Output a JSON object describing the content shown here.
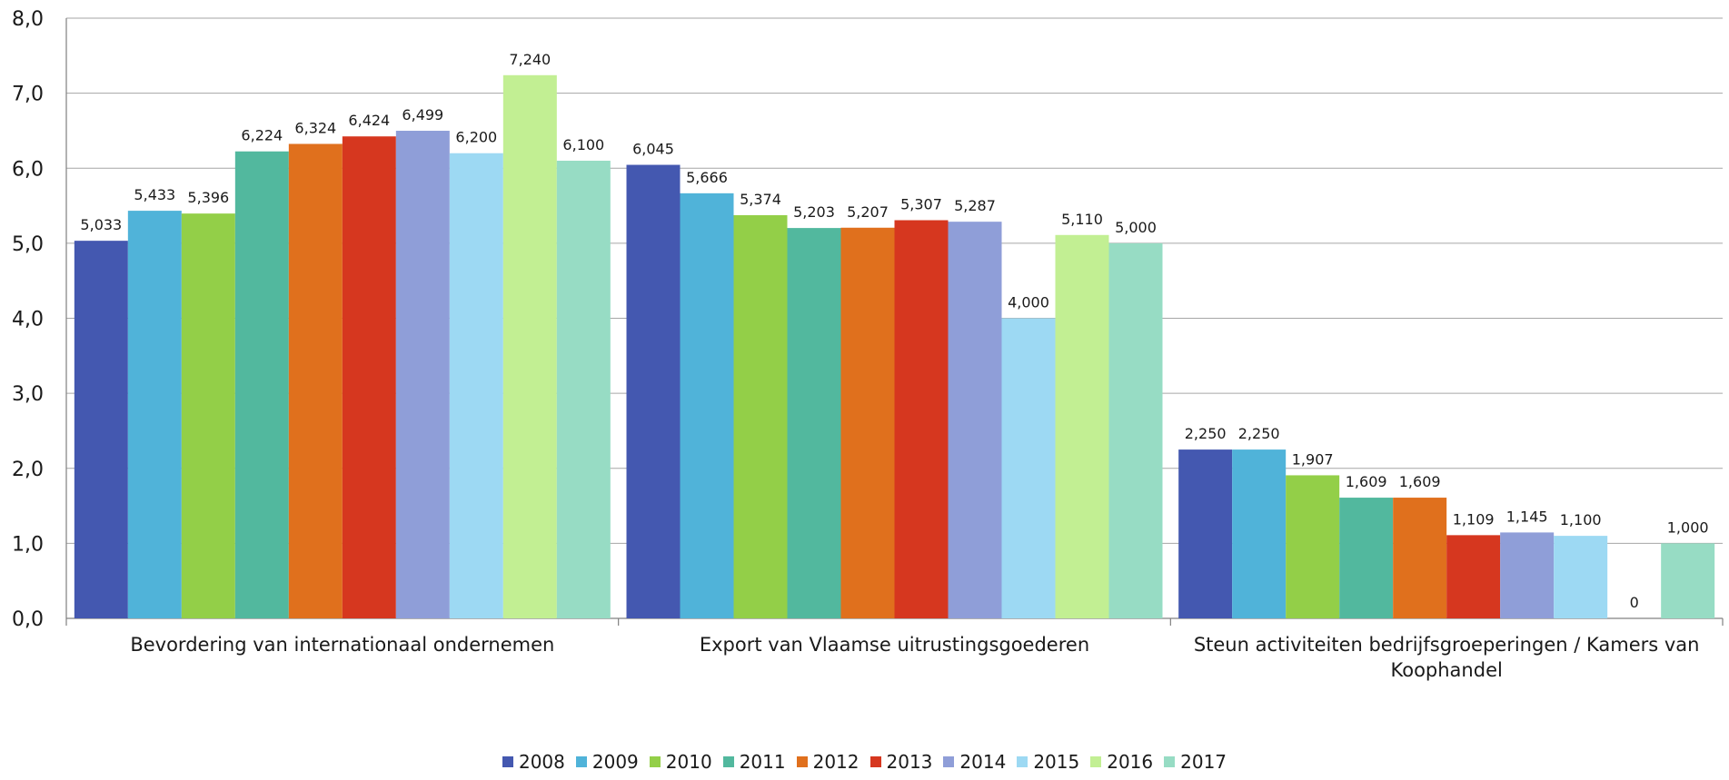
{
  "chart_data": {
    "type": "bar",
    "categories": [
      "Bevordering van internationaal ondernemen",
      "Export van Vlaamse uitrustingsgoederen",
      "Steun activiteiten bedrijfsgroeperingen / Kamers van Koophandel"
    ],
    "category_label_lines": [
      [
        "Bevordering van internationaal ondernemen"
      ],
      [
        "Export van Vlaamse uitrustingsgoederen"
      ],
      [
        "Steun activiteiten bedrijfsgroeperingen / Kamers van",
        "Koophandel"
      ]
    ],
    "series": [
      {
        "name": "2008",
        "color": "#4458b0",
        "values": [
          5.033,
          6.045,
          2.25
        ],
        "labels": [
          "5,033",
          "6,045",
          "2,250"
        ]
      },
      {
        "name": "2009",
        "color": "#50b3d9",
        "values": [
          5.433,
          5.666,
          2.25
        ],
        "labels": [
          "5,433",
          "5,666",
          "2,250"
        ]
      },
      {
        "name": "2010",
        "color": "#93cf48",
        "values": [
          5.396,
          5.374,
          1.907
        ],
        "labels": [
          "5,396",
          "5,374",
          "1,907"
        ]
      },
      {
        "name": "2011",
        "color": "#52b89e",
        "values": [
          6.224,
          5.203,
          1.609
        ],
        "labels": [
          "6,224",
          "5,203",
          "1,609"
        ]
      },
      {
        "name": "2012",
        "color": "#e0701d",
        "values": [
          6.324,
          5.207,
          1.609
        ],
        "labels": [
          "6,324",
          "5,207",
          "1,609"
        ]
      },
      {
        "name": "2013",
        "color": "#d6371f",
        "values": [
          6.424,
          5.307,
          1.109
        ],
        "labels": [
          "6,424",
          "5,307",
          "1,109"
        ]
      },
      {
        "name": "2014",
        "color": "#8f9ed8",
        "values": [
          6.499,
          5.287,
          1.145
        ],
        "labels": [
          "6,499",
          "5,287",
          "1,145"
        ]
      },
      {
        "name": "2015",
        "color": "#9dd9f3",
        "values": [
          6.2,
          4.0,
          1.1
        ],
        "labels": [
          "6,200",
          "4,000",
          "1,100"
        ]
      },
      {
        "name": "2016",
        "color": "#c2ef93",
        "values": [
          7.24,
          5.11,
          0
        ],
        "labels": [
          "7,240",
          "5,110",
          "0"
        ]
      },
      {
        "name": "2017",
        "color": "#97dcc4",
        "values": [
          6.1,
          5.0,
          1.0
        ],
        "labels": [
          "6,100",
          "5,000",
          "1,000"
        ]
      }
    ],
    "yticks": [
      0,
      1,
      2,
      3,
      4,
      5,
      6,
      7,
      8
    ],
    "ytick_labels": [
      "0,0",
      "1,0",
      "2,0",
      "3,0",
      "4,0",
      "5,0",
      "6,0",
      "7,0",
      "8,0"
    ],
    "ylim": [
      0,
      8
    ],
    "grid": true,
    "legend_position": "bottom",
    "title": "",
    "xlabel": "",
    "ylabel": ""
  }
}
